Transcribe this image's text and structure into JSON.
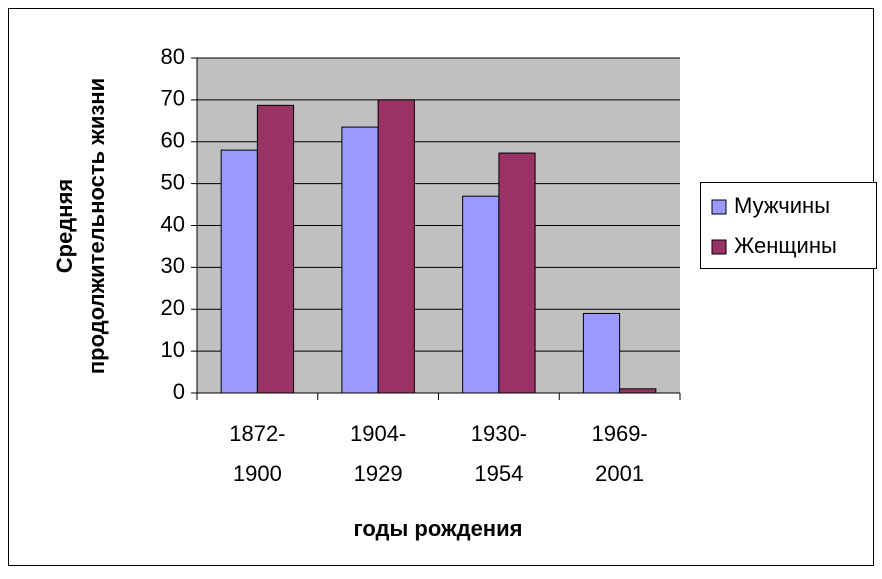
{
  "chart_data": {
    "type": "bar",
    "x_label": "годы рождения",
    "y_label": "Средняя продолжительность жизни",
    "categories": [
      "1872-1900",
      "1904-1929",
      "1930-1954",
      "1969-2001"
    ],
    "series": [
      {
        "name": "Мужчины",
        "color": "#9999ff",
        "values": [
          58,
          63.5,
          47,
          19
        ]
      },
      {
        "name": "Женщины",
        "color": "#993366",
        "values": [
          68.7,
          70,
          57.3,
          1
        ]
      }
    ],
    "ylim": [
      0,
      80
    ],
    "yticks": [
      0,
      10,
      20,
      30,
      40,
      50,
      60,
      70,
      80
    ],
    "grid": true,
    "legend": "right"
  }
}
